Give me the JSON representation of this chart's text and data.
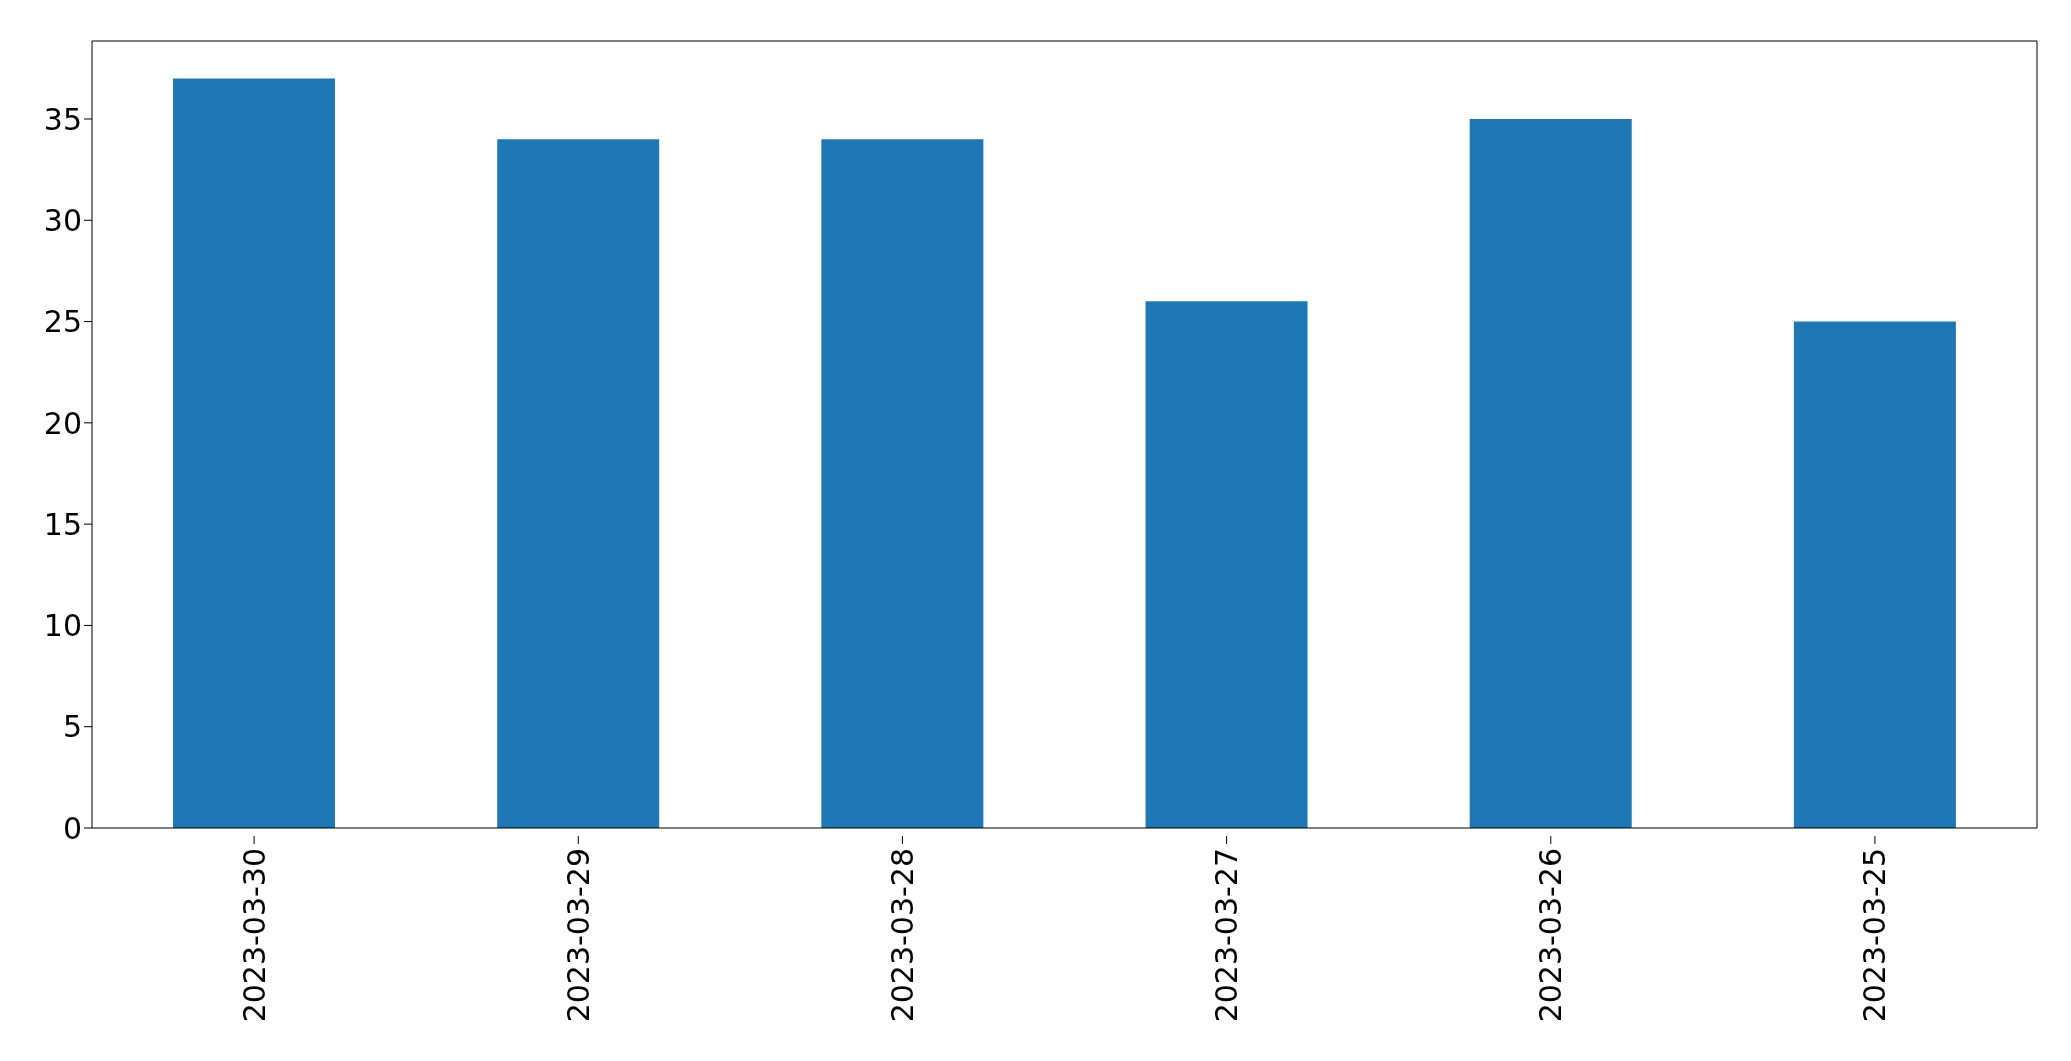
{
  "chart_data": {
    "type": "bar",
    "categories": [
      "2023-03-30",
      "2023-03-29",
      "2023-03-28",
      "2023-03-27",
      "2023-03-26",
      "2023-03-25"
    ],
    "values": [
      37,
      34,
      34,
      26,
      35,
      25
    ],
    "color": "#1f77b4",
    "ylim": [
      0,
      38.85
    ],
    "yticks": [
      0,
      5,
      10,
      15,
      20,
      25,
      30,
      35
    ],
    "grid": false,
    "legend": false
  }
}
